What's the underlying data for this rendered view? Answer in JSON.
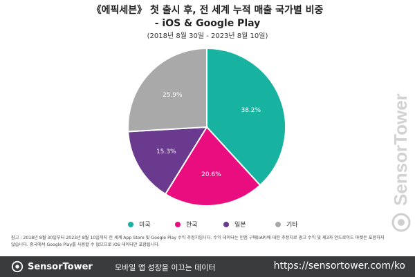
{
  "header": {
    "title_line1": "《에픽세븐》 첫 출시 후, 전 세계 누적 매출 국가별 비중",
    "title_line2": "- iOS & Google Play",
    "subtitle": "(2018년 8월 30일 - 2023년 8월 10일)"
  },
  "chart_data": {
    "type": "pie",
    "title": "《에픽세븐》 첫 출시 후, 전 세계 누적 매출 국가별 비중 - iOS & Google Play",
    "legend_position": "bottom",
    "slices": [
      {
        "label": "미국",
        "value": 38.2,
        "display": "38.2%",
        "color": "#18b3a0"
      },
      {
        "label": "한국",
        "value": 20.6,
        "display": "20.6%",
        "color": "#ea0d80"
      },
      {
        "label": "일본",
        "value": 15.3,
        "display": "15.3%",
        "color": "#6a3a8e"
      },
      {
        "label": "기타",
        "value": 25.9,
        "display": "25.9%",
        "color": "#a9a9a9"
      }
    ]
  },
  "note": {
    "line1": "참고 : 2018년 8월 30일부터 2023년 8월 10일까지 전 세계 App Store 및 Google Play 수익 추정치입니다. 수익 데이터는 인앱 구매(IAP)에 대한 추정치로 광고 수익 및 제3자 안드로이드 마켓은 포함하지",
    "line2": "않습니다. 중국에서 Google Play를 사용할 수 없으므로 iOS 데이터만 포함됩니다."
  },
  "watermark": {
    "text": "SensorTower"
  },
  "footer": {
    "brand": "SensorTower",
    "slogan": "모바일 앱 성장을 이끄는 데이터",
    "url": "https://sensortower.com/ko"
  }
}
